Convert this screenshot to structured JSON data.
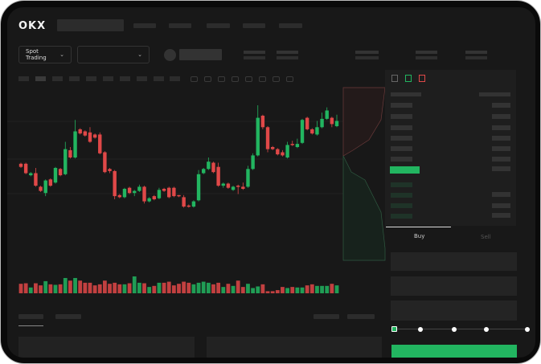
{
  "header": {
    "logo": "OKX"
  },
  "trade_bar": {
    "mode_select": "Spot Trading",
    "pair_select": ""
  },
  "order_form": {
    "tabs": [
      {
        "label": "Buy",
        "active": true
      },
      {
        "label": "Sell",
        "active": false
      }
    ],
    "slider_percent": 0
  },
  "colors": {
    "up": "#22b560",
    "down": "#e04848",
    "background": "#181818"
  },
  "icons": [
    "chevron-down-icon",
    "orderbook-both-icon",
    "orderbook-buy-icon",
    "orderbook-sell-icon",
    "indicator-icon",
    "draw-icon"
  ],
  "chart_data": {
    "type": "candlestick",
    "candles": [
      [
        44,
        41,
        45,
        40
      ],
      [
        44,
        35,
        45,
        34
      ],
      [
        33,
        35,
        36,
        32
      ],
      [
        35,
        23,
        40,
        22
      ],
      [
        22,
        18,
        23,
        17
      ],
      [
        16,
        28,
        29,
        13
      ],
      [
        29,
        23,
        30,
        22
      ],
      [
        26,
        40,
        41,
        25
      ],
      [
        39,
        33,
        40,
        32
      ],
      [
        34,
        58,
        65,
        33
      ],
      [
        57,
        50,
        60,
        49
      ],
      [
        50,
        75,
        86,
        49
      ],
      [
        77,
        73,
        78,
        72
      ],
      [
        75,
        71,
        76,
        70
      ],
      [
        74,
        65,
        79,
        64
      ],
      [
        72,
        69,
        73,
        68
      ],
      [
        72,
        54,
        74,
        53
      ],
      [
        55,
        36,
        56,
        35
      ],
      [
        39,
        37,
        40,
        35
      ],
      [
        37,
        13,
        38,
        10
      ],
      [
        14,
        12,
        15,
        11
      ],
      [
        12,
        20,
        21,
        11
      ],
      [
        21,
        16,
        22,
        15
      ],
      [
        16,
        18,
        19,
        13
      ],
      [
        18,
        22,
        24,
        17
      ],
      [
        22,
        8,
        23,
        6
      ],
      [
        8,
        11,
        12,
        7
      ],
      [
        13,
        10,
        14,
        9
      ],
      [
        11,
        19,
        21,
        10
      ],
      [
        20,
        18,
        21,
        17
      ],
      [
        21,
        12,
        22,
        11
      ],
      [
        21,
        13,
        22,
        12
      ],
      [
        14,
        13,
        14,
        12
      ],
      [
        12,
        3,
        14,
        2
      ],
      [
        4,
        3,
        5,
        2
      ],
      [
        3,
        8,
        9,
        2
      ],
      [
        9,
        34,
        38,
        8
      ],
      [
        35,
        39,
        40,
        34
      ],
      [
        39,
        46,
        50,
        38
      ],
      [
        45,
        36,
        46,
        35
      ],
      [
        41,
        23,
        45,
        22
      ],
      [
        23,
        25,
        26,
        21
      ],
      [
        25,
        21,
        26,
        20
      ],
      [
        19,
        22,
        23,
        18
      ],
      [
        23,
        22,
        24,
        15
      ],
      [
        22,
        20,
        26,
        19
      ],
      [
        22,
        39,
        42,
        21
      ],
      [
        39,
        52,
        54,
        38
      ],
      [
        52,
        88,
        100,
        51
      ],
      [
        90,
        79,
        91,
        77
      ],
      [
        79,
        58,
        80,
        55
      ],
      [
        60,
        58,
        61,
        57
      ],
      [
        58,
        53,
        59,
        52
      ],
      [
        55,
        52,
        57,
        51
      ],
      [
        50,
        62,
        65,
        49
      ],
      [
        63,
        62,
        66,
        61
      ],
      [
        60,
        63,
        68,
        59
      ],
      [
        64,
        86,
        87,
        63
      ],
      [
        88,
        77,
        89,
        76
      ],
      [
        77,
        73,
        78,
        72
      ],
      [
        72,
        79,
        85,
        71
      ],
      [
        79,
        87,
        93,
        78
      ],
      [
        87,
        95,
        98,
        86
      ],
      [
        88,
        82,
        89,
        79
      ],
      [
        80,
        85,
        91,
        79
      ]
    ],
    "volume": [
      36,
      38,
      22,
      38,
      30,
      46,
      34,
      32,
      34,
      58,
      48,
      58,
      48,
      40,
      40,
      30,
      34,
      48,
      36,
      40,
      34,
      34,
      38,
      64,
      40,
      38,
      24,
      28,
      40,
      40,
      44,
      30,
      36,
      44,
      40,
      34,
      40,
      44,
      40,
      34,
      40,
      24,
      36,
      28,
      48,
      24,
      36,
      20,
      26,
      34,
      8,
      8,
      12,
      24,
      20,
      24,
      22,
      22,
      30,
      34,
      28,
      28,
      28,
      36,
      30
    ]
  }
}
